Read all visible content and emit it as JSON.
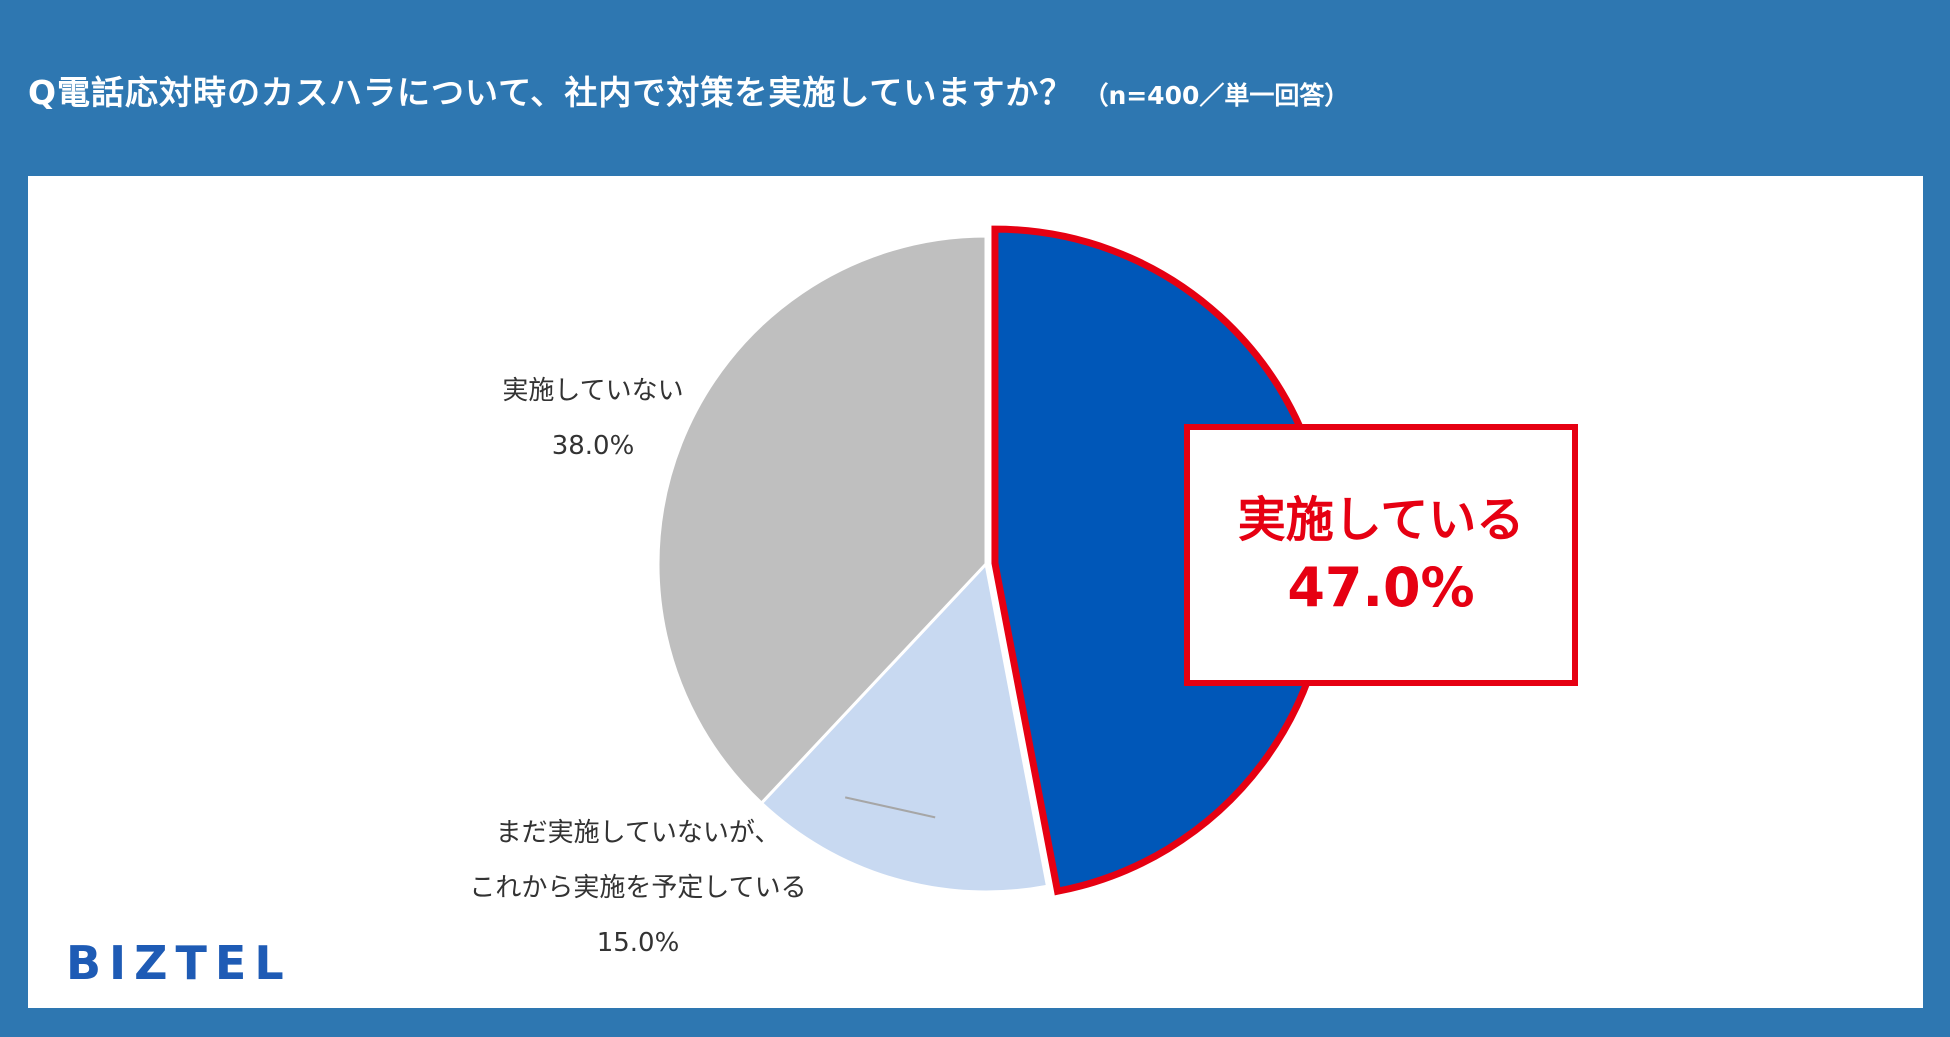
{
  "header": {
    "question": "Q電話応対時のカスハラについて、社内で対策を実施していますか？",
    "note": "（n=400／単一回答）"
  },
  "chart_data": {
    "type": "pie",
    "start_angle_deg": 0,
    "direction": "clockwise",
    "highlighted_slice": 0,
    "slices": [
      {
        "label": "実施している",
        "value": 47.0,
        "value_label": "47.0%",
        "color": "#0057b8"
      },
      {
        "label_lines": [
          "まだ実施していないが、",
          "これから実施を予定している"
        ],
        "value": 15.0,
        "value_label": "15.0%",
        "color": "#c8d9f1"
      },
      {
        "label": "実施していない",
        "value": 38.0,
        "value_label": "38.0%",
        "color": "#bfbfbf"
      }
    ],
    "highlight_color": "#e60012"
  },
  "footer": {
    "brand": "BIZTEL"
  }
}
